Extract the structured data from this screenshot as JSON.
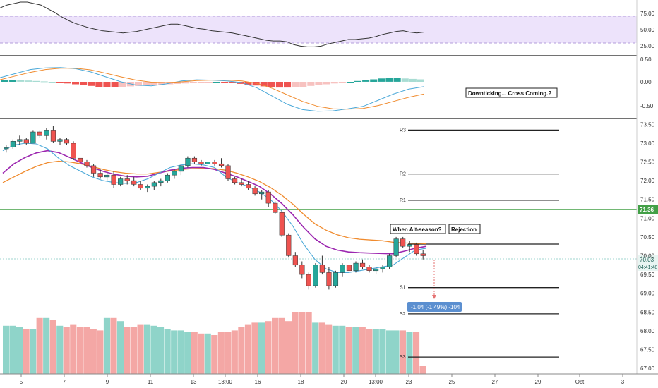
{
  "colors": {
    "up": "#26a69a",
    "down": "#ef5350",
    "vol_up": "#8fd4c9",
    "vol_down": "#f4a7a5",
    "rsi_line": "#333333",
    "rsi_band": "#ede3fb",
    "macd_line": "#4aa8d8",
    "signal_line": "#f08b2e",
    "ma_fast": "#4aa8d8",
    "ma_mid": "#9c27b0",
    "ma_slow": "#f08b2e",
    "horizontal_level": "#43a047",
    "label_bg": "#5b8fd0",
    "price_badge": "#26a69a"
  },
  "chart_data": [
    {
      "type": "line",
      "panel": "rsi",
      "y_ticks": [
        "75.00",
        "50.00",
        "25.00"
      ],
      "ylim": [
        15,
        90
      ],
      "band": [
        30,
        70
      ],
      "x": [
        0,
        2,
        4,
        6,
        8,
        10,
        12,
        14,
        16,
        18,
        20,
        22,
        24,
        26,
        28,
        30,
        32,
        34,
        36,
        38,
        40,
        42,
        44,
        46,
        48,
        50,
        52,
        54,
        56,
        58,
        60,
        62,
        64,
        66,
        68,
        70,
        72,
        74,
        76,
        78,
        80,
        82,
        84,
        86,
        88,
        90,
        92,
        94,
        96,
        98,
        100,
        102,
        104,
        106,
        108,
        110,
        112,
        114,
        116,
        118,
        120,
        122,
        124
      ],
      "values": [
        80,
        84,
        86,
        88,
        88,
        86,
        84,
        79,
        74,
        68,
        63,
        59,
        56,
        53,
        51,
        49,
        48,
        47,
        46,
        47,
        48,
        50,
        52,
        54,
        56,
        58,
        58,
        56,
        54,
        52,
        51,
        49,
        48,
        47,
        46,
        44,
        42,
        40,
        38,
        36,
        35,
        35,
        34,
        30,
        28,
        27,
        27,
        28,
        31,
        33,
        35,
        37,
        37,
        38,
        39,
        41,
        44,
        46,
        48,
        49,
        47,
        46,
        47
      ]
    },
    {
      "type": "bar",
      "panel": "macd",
      "y_ticks": [
        "0.50",
        "0.00",
        "-0.50"
      ],
      "ylim": [
        -0.88,
        0.62
      ],
      "annotation": "Downticking... Cross Coming.?",
      "histogram": [
        0.05,
        0.05,
        0.04,
        0.03,
        0.02,
        0.01,
        0.0,
        -0.02,
        -0.04,
        -0.06,
        -0.08,
        -0.1,
        -0.12,
        -0.13,
        -0.13,
        -0.12,
        -0.11,
        -0.1,
        -0.09,
        -0.08,
        -0.07,
        -0.06,
        -0.05,
        -0.04,
        -0.03,
        -0.02,
        -0.01,
        0.0,
        -0.01,
        -0.03,
        -0.05,
        -0.07,
        -0.09,
        -0.11,
        -0.13,
        -0.14,
        -0.14,
        -0.13,
        -0.12,
        -0.1,
        -0.08,
        -0.06,
        -0.04,
        -0.02,
        0.0,
        0.02,
        0.04,
        0.06,
        0.08,
        0.09,
        0.09,
        0.08,
        0.07,
        0.06
      ],
      "macd": [
        0.1,
        0.2,
        0.3,
        0.34,
        0.35,
        0.32,
        0.24,
        0.12,
        0.0,
        -0.08,
        -0.1,
        -0.05,
        0.02,
        0.05,
        0.04,
        0.02,
        -0.02,
        -0.15,
        -0.35,
        -0.55,
        -0.68,
        -0.72,
        -0.71,
        -0.66,
        -0.6,
        -0.45,
        -0.3,
        -0.18,
        -0.12
      ],
      "signal": [
        0.05,
        0.14,
        0.23,
        0.3,
        0.33,
        0.33,
        0.29,
        0.21,
        0.12,
        0.04,
        -0.01,
        -0.02,
        0.0,
        0.03,
        0.04,
        0.04,
        0.02,
        -0.04,
        -0.16,
        -0.32,
        -0.48,
        -0.6,
        -0.66,
        -0.67,
        -0.65,
        -0.58,
        -0.48,
        -0.38,
        -0.3
      ]
    },
    {
      "type": "candlestick",
      "panel": "price",
      "x_ticks": [
        "5",
        "7",
        "9",
        "11",
        "13",
        "13:00",
        "16",
        "18",
        "20",
        "13:00",
        "23",
        "25",
        "27",
        "29",
        "Oct",
        "3"
      ],
      "y_ticks": [
        "73.50",
        "73.00",
        "72.50",
        "72.00",
        "71.50",
        "71.00",
        "70.50",
        "70.00",
        "69.50",
        "69.00",
        "68.50",
        "68.00",
        "67.50",
        "67.00"
      ],
      "ylim": [
        66.85,
        73.62
      ],
      "ohlc": [
        [
          72.85,
          72.95,
          72.75,
          72.88
        ],
        [
          72.9,
          73.1,
          72.85,
          73.05
        ],
        [
          73.05,
          73.2,
          72.95,
          73.1
        ],
        [
          73.1,
          73.15,
          72.95,
          73.0
        ],
        [
          73.0,
          73.35,
          73.0,
          73.3
        ],
        [
          73.3,
          73.35,
          73.15,
          73.2
        ],
        [
          73.2,
          73.4,
          73.1,
          73.35
        ],
        [
          73.35,
          73.45,
          73.0,
          73.05
        ],
        [
          73.05,
          73.15,
          72.95,
          73.1
        ],
        [
          73.1,
          73.15,
          72.95,
          73.0
        ],
        [
          73.0,
          73.05,
          72.55,
          72.6
        ],
        [
          72.6,
          72.7,
          72.45,
          72.5
        ],
        [
          72.5,
          72.55,
          72.35,
          72.4
        ],
        [
          72.4,
          72.45,
          72.1,
          72.2
        ],
        [
          72.2,
          72.3,
          72.05,
          72.1
        ],
        [
          72.1,
          72.25,
          72.0,
          72.15
        ],
        [
          72.15,
          72.25,
          71.8,
          71.9
        ],
        [
          71.9,
          72.1,
          71.85,
          72.05
        ],
        [
          72.05,
          72.15,
          71.9,
          72.0
        ],
        [
          72.0,
          72.1,
          71.85,
          71.9
        ],
        [
          71.9,
          72.0,
          71.75,
          71.8
        ],
        [
          71.8,
          71.9,
          71.7,
          71.85
        ],
        [
          71.85,
          72.0,
          71.75,
          71.95
        ],
        [
          71.95,
          72.05,
          71.85,
          72.0
        ],
        [
          72.0,
          72.2,
          71.95,
          72.15
        ],
        [
          72.15,
          72.3,
          72.05,
          72.25
        ],
        [
          72.25,
          72.45,
          72.15,
          72.4
        ],
        [
          72.4,
          72.65,
          72.35,
          72.6
        ],
        [
          72.6,
          72.65,
          72.45,
          72.5
        ],
        [
          72.5,
          72.55,
          72.4,
          72.45
        ],
        [
          72.45,
          72.55,
          72.35,
          72.5
        ],
        [
          72.5,
          72.55,
          72.4,
          72.45
        ],
        [
          72.45,
          72.6,
          72.35,
          72.4
        ],
        [
          72.4,
          72.45,
          72.0,
          72.05
        ],
        [
          72.05,
          72.1,
          71.9,
          71.95
        ],
        [
          71.95,
          72.05,
          71.85,
          71.9
        ],
        [
          71.9,
          72.0,
          71.75,
          71.8
        ],
        [
          71.8,
          71.85,
          71.6,
          71.65
        ],
        [
          71.65,
          71.75,
          71.5,
          71.7
        ],
        [
          71.7,
          71.75,
          71.3,
          71.4
        ],
        [
          71.4,
          71.45,
          71.1,
          71.15
        ],
        [
          71.15,
          71.2,
          70.5,
          70.55
        ],
        [
          70.55,
          70.6,
          69.95,
          70.0
        ],
        [
          70.0,
          70.1,
          69.7,
          69.75
        ],
        [
          69.75,
          69.85,
          69.4,
          69.5
        ],
        [
          69.5,
          69.55,
          69.1,
          69.2
        ],
        [
          69.2,
          69.8,
          69.15,
          69.75
        ],
        [
          69.75,
          70.0,
          69.5,
          69.55
        ],
        [
          69.55,
          69.7,
          69.1,
          69.2
        ],
        [
          69.2,
          69.6,
          69.15,
          69.55
        ],
        [
          69.55,
          69.8,
          69.45,
          69.75
        ],
        [
          69.75,
          69.85,
          69.55,
          69.6
        ],
        [
          69.6,
          69.85,
          69.55,
          69.8
        ],
        [
          69.8,
          69.9,
          69.65,
          69.7
        ],
        [
          69.7,
          69.75,
          69.55,
          69.6
        ],
        [
          69.6,
          69.7,
          69.5,
          69.65
        ],
        [
          69.65,
          69.75,
          69.55,
          69.7
        ],
        [
          69.7,
          70.05,
          69.65,
          70.0
        ],
        [
          70.0,
          70.5,
          69.95,
          70.45
        ],
        [
          70.45,
          70.5,
          70.2,
          70.25
        ],
        [
          70.25,
          70.4,
          70.1,
          70.3
        ],
        [
          70.3,
          70.35,
          70.0,
          70.05
        ],
        [
          70.05,
          70.15,
          69.9,
          70.0
        ]
      ],
      "levels": [
        {
          "name": "R3",
          "value": 73.35
        },
        {
          "name": "R2",
          "value": 72.18
        },
        {
          "name": "R1",
          "value": 71.48
        },
        {
          "name": "",
          "value": 70.31
        },
        {
          "name": "S1",
          "value": 69.15
        },
        {
          "name": "S2",
          "value": 68.45
        },
        {
          "name": "S3",
          "value": 67.3
        }
      ],
      "horizontal_line": {
        "value": 71.36,
        "label": "71.36"
      },
      "last_price": {
        "value": 70.03,
        "label": "70.03",
        "countdown": "04:41:48"
      },
      "annotations": [
        "When Alt-season?",
        "Rejection"
      ],
      "measure_label": "-1.04 (-1.49%) -104",
      "ma_fast": [
        72.8,
        72.95,
        73.0,
        72.98,
        72.85,
        72.6,
        72.4,
        72.25,
        72.1,
        72.0,
        71.95,
        71.93,
        71.95,
        72.05,
        72.2,
        72.35,
        72.42,
        72.45,
        72.42,
        72.35,
        72.1,
        71.95,
        71.85,
        71.7,
        71.5,
        71.2,
        70.8,
        70.3,
        69.9,
        69.65,
        69.55,
        69.55,
        69.6,
        69.65,
        69.7,
        69.75,
        69.95,
        70.15,
        70.2
      ],
      "ma_mid": [
        72.2,
        72.45,
        72.62,
        72.74,
        72.8,
        72.75,
        72.62,
        72.48,
        72.35,
        72.25,
        72.17,
        72.12,
        72.1,
        72.12,
        72.2,
        72.28,
        72.33,
        72.35,
        72.35,
        72.3,
        72.2,
        72.1,
        71.98,
        71.85,
        71.65,
        71.4,
        71.1,
        70.75,
        70.45,
        70.25,
        70.15,
        70.1,
        70.08,
        70.07,
        70.06,
        70.05,
        70.12,
        70.2,
        70.25
      ],
      "ma_slow": [
        71.95,
        72.1,
        72.25,
        72.38,
        72.48,
        72.52,
        72.5,
        72.45,
        72.38,
        72.3,
        72.24,
        72.2,
        72.18,
        72.18,
        72.22,
        72.26,
        72.3,
        72.32,
        72.33,
        72.32,
        72.28,
        72.2,
        72.1,
        71.98,
        71.82,
        71.62,
        71.38,
        71.1,
        70.85,
        70.68,
        70.56,
        70.48,
        70.44,
        70.42,
        70.4,
        70.36,
        70.34,
        70.33,
        70.32
      ]
    }
  ]
}
